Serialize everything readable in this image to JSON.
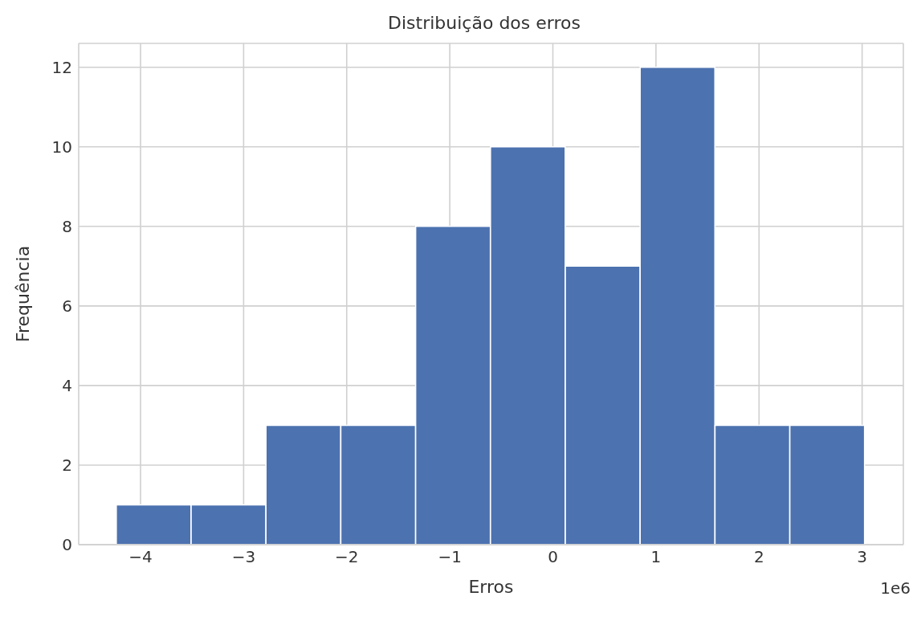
{
  "chart_data": {
    "type": "histogram",
    "title": "Distribuição dos erros",
    "xlabel": "Erros",
    "ylabel": "Frequência",
    "bins": [
      -4.235,
      -3.509,
      -2.783,
      -2.057,
      -1.331,
      -0.605,
      0.121,
      0.847,
      1.573,
      2.299,
      3.025
    ],
    "values": [
      1,
      1,
      3,
      3,
      8,
      10,
      7,
      12,
      3,
      3
    ],
    "color": "#4c72b0",
    "xlim": [
      -4.6,
      3.4
    ],
    "xticks": [
      {
        "value": -4,
        "label": "−4"
      },
      {
        "value": -3,
        "label": "−3"
      },
      {
        "value": -2,
        "label": "−2"
      },
      {
        "value": -1,
        "label": "−1"
      },
      0,
      1,
      2,
      3
    ],
    "ylim": [
      0,
      12.6
    ],
    "yticks": [
      0,
      2,
      4,
      6,
      8,
      10,
      12
    ],
    "grid": true,
    "annotations": [
      "1e6"
    ]
  }
}
